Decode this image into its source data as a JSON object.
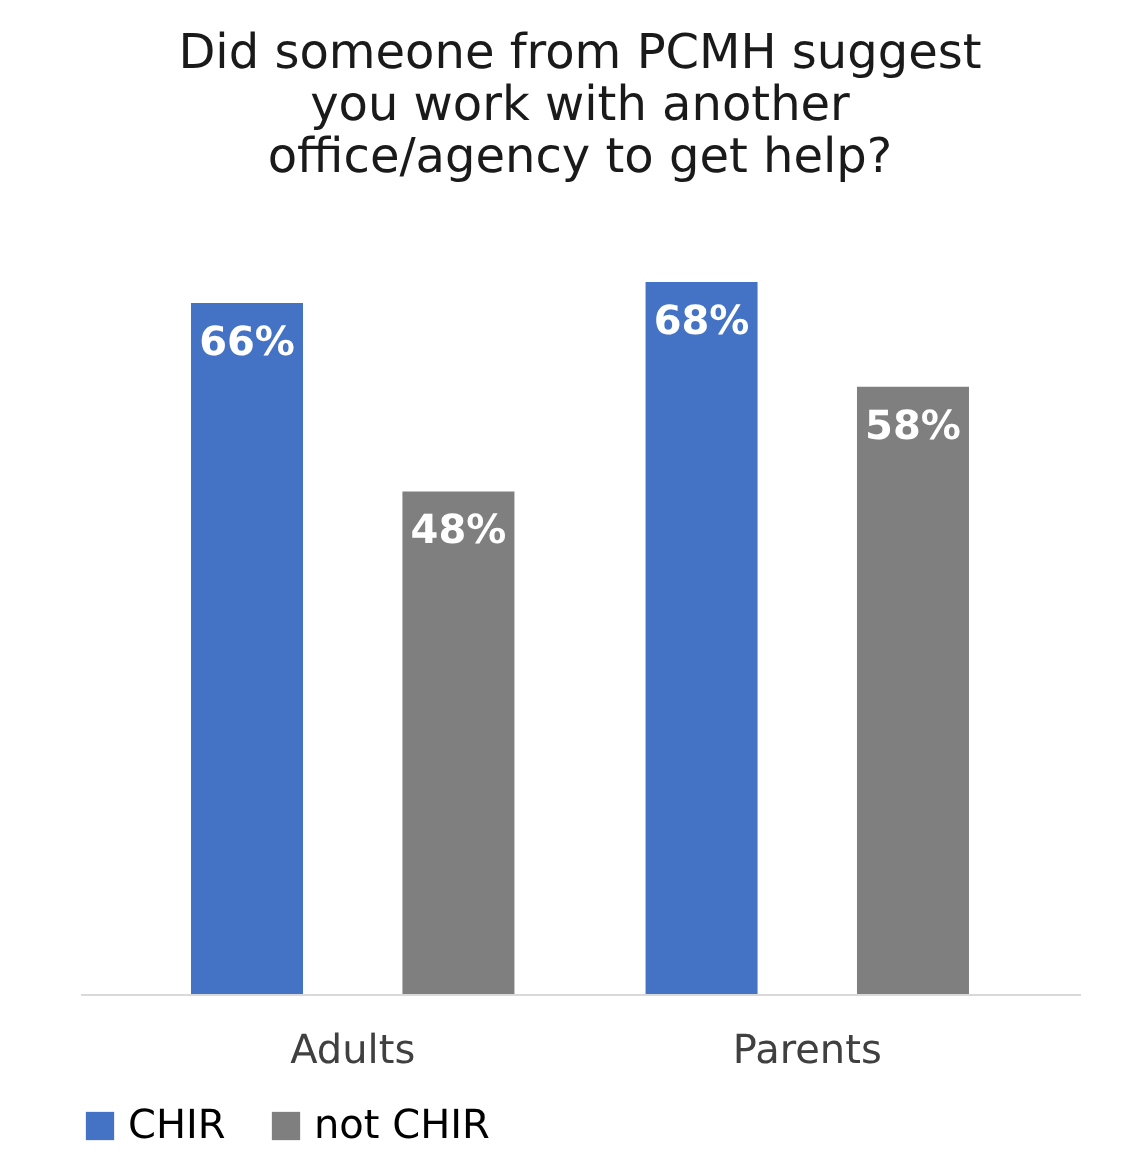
{
  "chart_data": {
    "type": "bar",
    "title": [
      "Did someone from PCMH suggest",
      "you work with another",
      "office/agency to get help?"
    ],
    "categories": [
      "Adults",
      "Parents"
    ],
    "series": [
      {
        "name": "CHIR",
        "color": "#4472c4",
        "values": [
          66,
          68
        ],
        "value_labels": [
          "66%",
          "68%"
        ]
      },
      {
        "name": "not CHIR",
        "color": "#7f7f7f",
        "values": [
          48,
          58
        ],
        "value_labels": [
          "48%",
          "58%"
        ]
      }
    ],
    "legend": "bottom",
    "grid": false
  }
}
